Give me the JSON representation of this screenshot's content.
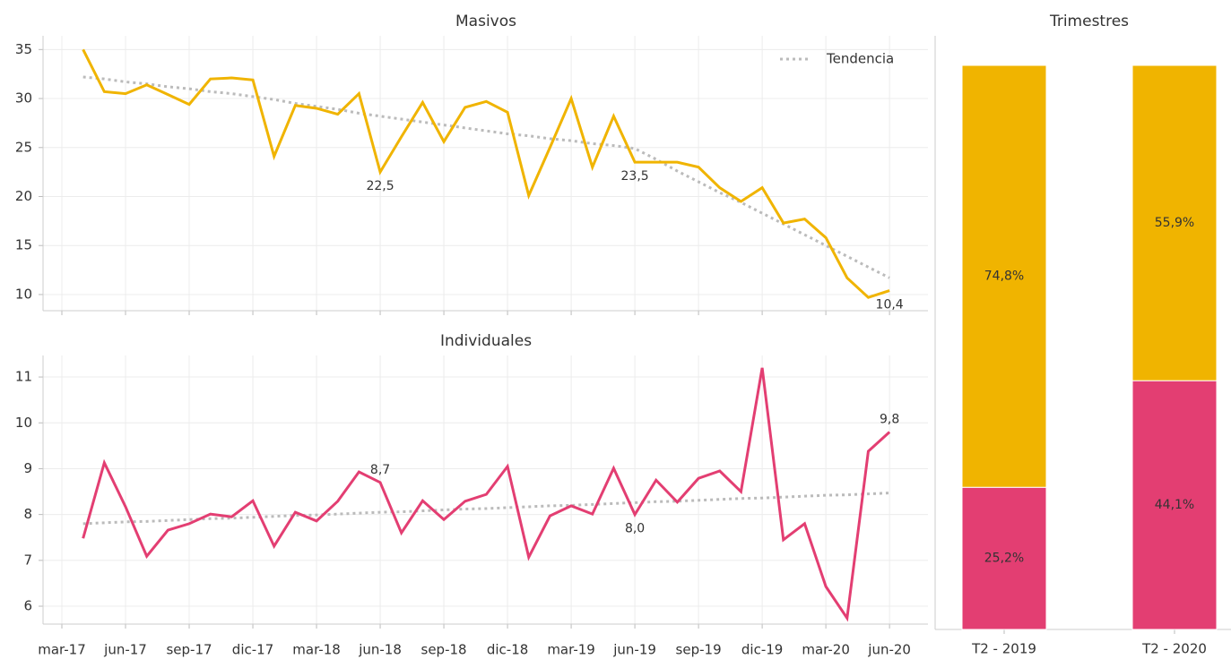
{
  "chart_data": [
    {
      "type": "line",
      "title": "Masivos",
      "ylim": [
        8.35,
        36.4
      ],
      "yticks": [
        10,
        15,
        20,
        25,
        30,
        35
      ],
      "grid": true,
      "legend": "upper right",
      "series": [
        {
          "color": "#f0b400",
          "values": [
            null,
            35.0,
            30.7,
            30.5,
            31.4,
            30.4,
            29.4,
            32.0,
            32.1,
            31.9,
            24.1,
            29.3,
            29.0,
            28.4,
            30.5,
            22.5,
            26.1,
            29.6,
            25.6,
            29.1,
            29.7,
            28.6,
            20.1,
            25.0,
            30.0,
            23.0,
            28.2,
            23.5,
            23.5,
            23.5,
            23.0,
            20.9,
            19.5,
            20.9,
            17.3,
            17.7,
            15.8,
            11.7,
            9.7,
            10.4
          ],
          "value_labels": [
            null,
            null,
            null,
            null,
            null,
            null,
            null,
            null,
            null,
            null,
            null,
            null,
            null,
            null,
            null,
            "22,5",
            null,
            null,
            null,
            null,
            null,
            null,
            null,
            null,
            null,
            null,
            null,
            "23,5",
            null,
            null,
            null,
            null,
            null,
            null,
            null,
            null,
            null,
            null,
            null,
            "10,4"
          ]
        },
        {
          "name": "Tendencia",
          "color": "#bbbbbb",
          "dashed": true,
          "values": [
            null,
            32.2,
            32.0,
            31.7,
            31.5,
            31.2,
            31.0,
            30.7,
            30.5,
            30.2,
            29.9,
            29.5,
            29.2,
            28.9,
            28.5,
            28.2,
            27.9,
            27.6,
            27.3,
            27.0,
            26.7,
            26.4,
            26.2,
            25.9,
            25.7,
            25.4,
            25.2,
            24.9,
            23.8,
            22.6,
            21.5,
            20.4,
            19.4,
            18.3,
            17.2,
            16.1,
            15.0,
            13.9,
            12.8,
            11.7
          ]
        }
      ]
    },
    {
      "type": "line",
      "title": "Individuales",
      "ylim": [
        5.61,
        11.47
      ],
      "yticks": [
        6,
        7,
        8,
        9,
        10,
        11
      ],
      "grid": true,
      "categories": [
        "mar-17",
        null,
        null,
        "jun-17",
        null,
        null,
        "sep-17",
        null,
        null,
        "dic-17",
        null,
        null,
        "mar-18",
        null,
        null,
        "jun-18",
        null,
        null,
        "sep-18",
        null,
        null,
        "dic-18",
        null,
        null,
        "mar-19",
        null,
        null,
        "jun-19",
        null,
        null,
        "sep-19",
        null,
        null,
        "dic-19",
        null,
        null,
        "mar-20",
        null,
        null,
        "jun-20"
      ],
      "series": [
        {
          "color": "#e33e72",
          "values": [
            null,
            7.48,
            9.13,
            8.17,
            7.09,
            7.66,
            7.8,
            8.01,
            7.95,
            8.3,
            7.31,
            8.05,
            7.86,
            8.29,
            8.93,
            8.7,
            7.6,
            8.3,
            7.89,
            8.29,
            8.44,
            9.05,
            7.07,
            7.97,
            8.19,
            8.01,
            9.01,
            8.0,
            8.75,
            8.27,
            8.79,
            8.95,
            8.5,
            11.2,
            7.45,
            7.8,
            6.43,
            5.74,
            9.38,
            9.8
          ],
          "value_labels": [
            null,
            null,
            null,
            null,
            null,
            null,
            null,
            null,
            null,
            null,
            null,
            null,
            null,
            null,
            null,
            "8,7",
            null,
            null,
            null,
            null,
            null,
            null,
            null,
            null,
            null,
            null,
            null,
            "8,0",
            null,
            null,
            null,
            null,
            null,
            null,
            null,
            null,
            null,
            null,
            null,
            "9,8"
          ]
        },
        {
          "color": "#bbbbbb",
          "dashed": true,
          "values": [
            null,
            7.8,
            7.82,
            7.84,
            7.85,
            7.87,
            7.89,
            7.91,
            7.92,
            7.94,
            7.96,
            7.98,
            7.99,
            8.01,
            8.03,
            8.05,
            8.06,
            8.08,
            8.1,
            8.12,
            8.13,
            8.15,
            8.17,
            8.19,
            8.2,
            8.22,
            8.24,
            8.26,
            8.28,
            8.29,
            8.31,
            8.33,
            8.35,
            8.36,
            8.38,
            8.4,
            8.42,
            8.43,
            8.45,
            8.47
          ]
        }
      ]
    },
    {
      "type": "bar",
      "stacked": true,
      "title": "Trimestres",
      "categories": [
        "T2 - 2019",
        "T2 - 2020"
      ],
      "series": [
        {
          "color": "#e33e72",
          "values": [
            25.2,
            44.1
          ],
          "value_labels": [
            "25,2%",
            "44,1%"
          ]
        },
        {
          "color": "#f0b400",
          "values": [
            74.8,
            55.9
          ],
          "value_labels": [
            "74,8%",
            "55,9%"
          ]
        }
      ]
    }
  ]
}
